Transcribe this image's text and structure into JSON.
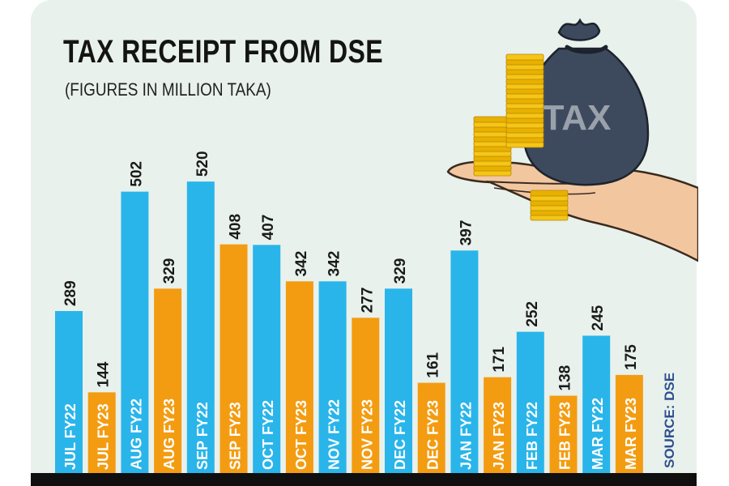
{
  "chart_data": {
    "type": "bar",
    "title": "TAX RECEIPT FROM DSE",
    "subtitle": "(FIGURES IN MILLION TAKA)",
    "categories": [
      "JUL FY22",
      "JUL FY23",
      "AUG FY22",
      "AUG FY23",
      "SEP FY22",
      "SEP FY23",
      "OCT FY22",
      "OCT FY23",
      "NOV FY22",
      "NOV FY23",
      "DEC FY22",
      "DEC FY23",
      "JAN FY22",
      "JAN FY23",
      "FEB FY22",
      "FEB FY23",
      "MAR FY22",
      "MAR FY23"
    ],
    "values": [
      289,
      144,
      502,
      329,
      520,
      408,
      407,
      342,
      342,
      277,
      329,
      161,
      397,
      171,
      252,
      138,
      245,
      175
    ],
    "series_colors": {
      "FY22": "#29b5ea",
      "FY23": "#f39c12"
    },
    "source": "SOURCE: DSE",
    "grid": false,
    "legend": "none"
  },
  "illustration": {
    "bag_label": "TAX",
    "bag_color": "#3d4a5e",
    "coin_color": "#f5c518"
  }
}
